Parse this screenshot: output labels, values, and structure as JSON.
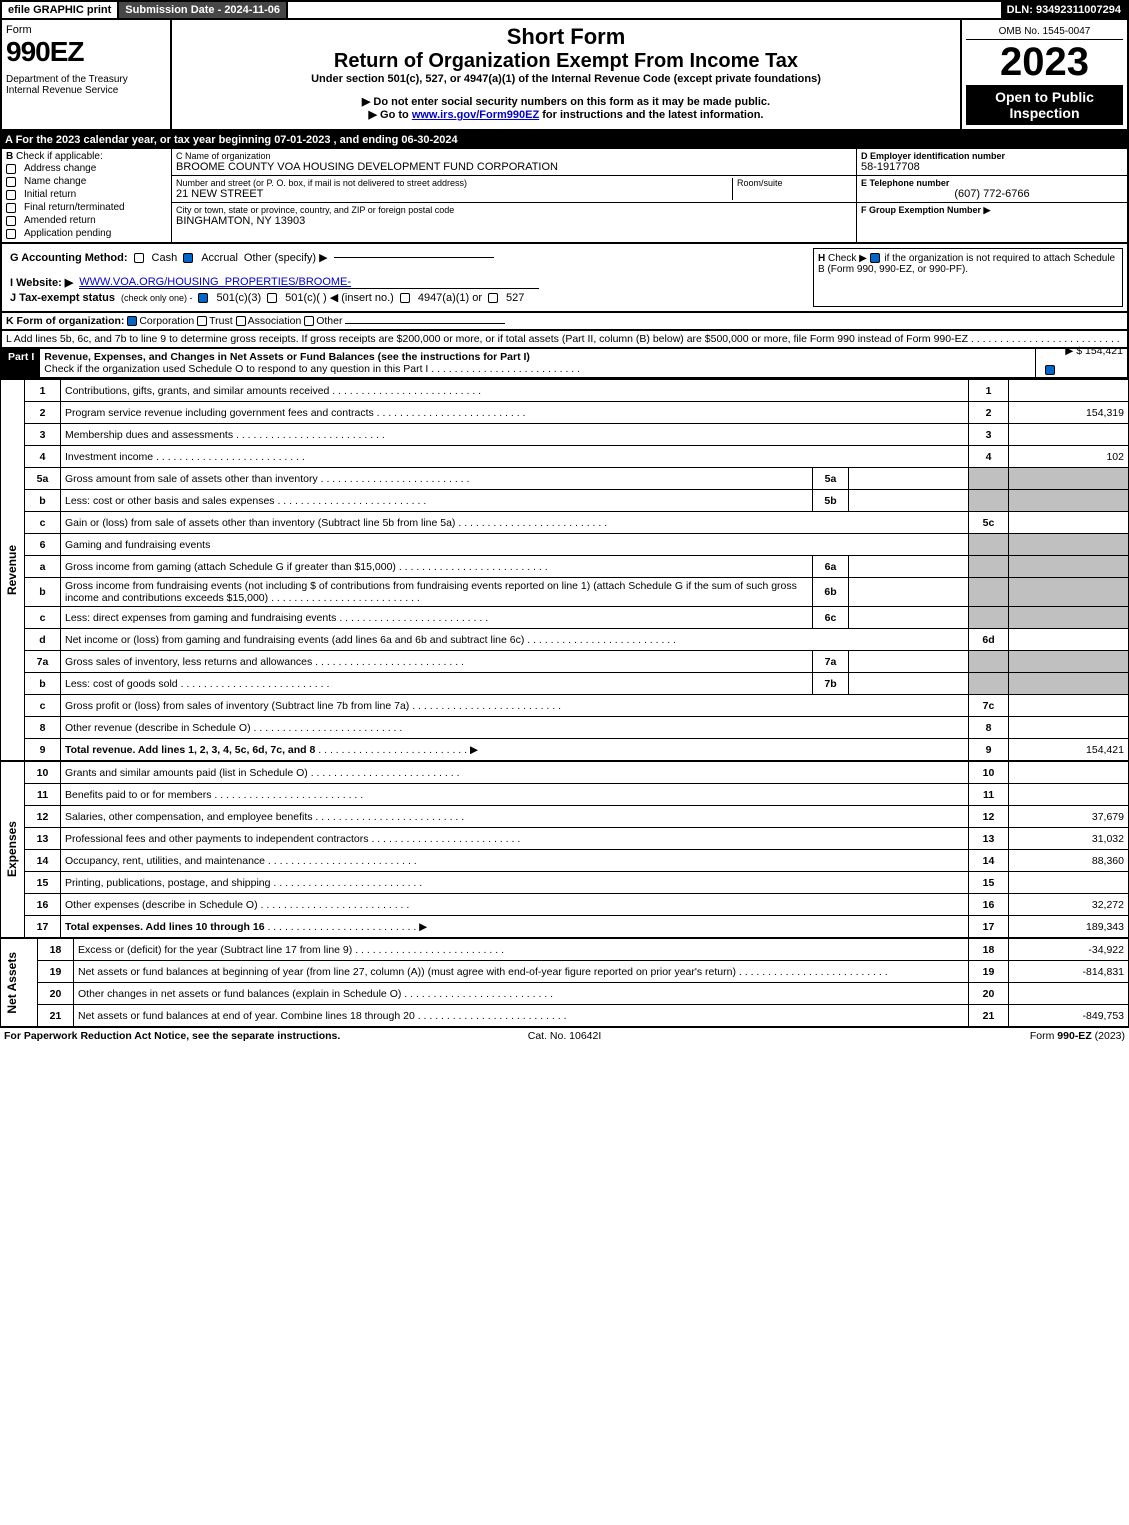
{
  "topbar": {
    "efile": "efile GRAPHIC print",
    "submission": "Submission Date - 2024-11-06",
    "dln": "DLN: 93492311007294"
  },
  "header": {
    "form_label": "Form",
    "form_number": "990EZ",
    "dept": "Department of the Treasury\nInternal Revenue Service",
    "short_form": "Short Form",
    "return_title": "Return of Organization Exempt From Income Tax",
    "subtitle": "Under section 501(c), 527, or 4947(a)(1) of the Internal Revenue Code (except private foundations)",
    "warn": "▶ Do not enter social security numbers on this form as it may be made public.",
    "goto": "▶ Go to ",
    "goto_link": "www.irs.gov/Form990EZ",
    "goto_suffix": " for instructions and the latest information.",
    "omb": "OMB No. 1545-0047",
    "year": "2023",
    "open": "Open to Public Inspection"
  },
  "section_a": "A For the 2023 calendar year, or tax year beginning 07-01-2023 , and ending 06-30-2024",
  "section_b": {
    "label": "B",
    "check_label": "Check if applicable:",
    "items": [
      "Address change",
      "Name change",
      "Initial return",
      "Final return/terminated",
      "Amended return",
      "Application pending"
    ]
  },
  "section_c": {
    "name_label": "C Name of organization",
    "name": "BROOME COUNTY VOA HOUSING DEVELOPMENT FUND CORPORATION",
    "street_label": "Number and street (or P. O. box, if mail is not delivered to street address)",
    "room_label": "Room/suite",
    "street": "21 NEW STREET",
    "city_label": "City or town, state or province, country, and ZIP or foreign postal code",
    "city": "BINGHAMTON, NY  13903"
  },
  "section_de": {
    "d_label": "D Employer identification number",
    "ein": "58-1917708",
    "e_label": "E Telephone number",
    "phone": "(607) 772-6766",
    "f_label": "F Group Exemption Number  ▶"
  },
  "section_g": {
    "label": "G Accounting Method:",
    "cash": "Cash",
    "accrual": "Accrual",
    "other": "Other (specify) ▶"
  },
  "section_h": {
    "label": "H",
    "text": "Check ▶",
    "suffix": "if the organization is not required to attach Schedule B (Form 990, 990-EZ, or 990-PF)."
  },
  "section_i": {
    "label": "I Website: ▶",
    "url": "WWW.VOA.ORG/HOUSING_PROPERTIES/BROOME-"
  },
  "section_j": {
    "label": "J Tax-exempt status",
    "suffix": "(check only one) -",
    "o1": "501(c)(3)",
    "o2": "501(c)(  ) ◀ (insert no.)",
    "o3": "4947(a)(1) or",
    "o4": "527"
  },
  "section_k": {
    "label": "K Form of organization:",
    "o1": "Corporation",
    "o2": "Trust",
    "o3": "Association",
    "o4": "Other"
  },
  "section_l": {
    "text": "L Add lines 5b, 6c, and 7b to line 9 to determine gross receipts. If gross receipts are $200,000 or more, or if total assets (Part II, column (B) below) are $500,000 or more, file Form 990 instead of Form 990-EZ",
    "value": "▶ $ 154,421"
  },
  "part1": {
    "label": "Part I",
    "title": "Revenue, Expenses, and Changes in Net Assets or Fund Balances (see the instructions for Part I)",
    "check": "Check if the organization used Schedule O to respond to any question in this Part I"
  },
  "side_labels": {
    "rev": "Revenue",
    "exp": "Expenses",
    "na": "Net Assets"
  },
  "rows": [
    {
      "n": "1",
      "desc": "Contributions, gifts, grants, and similar amounts received",
      "rn": "1",
      "rv": ""
    },
    {
      "n": "2",
      "desc": "Program service revenue including government fees and contracts",
      "rn": "2",
      "rv": "154,319"
    },
    {
      "n": "3",
      "desc": "Membership dues and assessments",
      "rn": "3",
      "rv": ""
    },
    {
      "n": "4",
      "desc": "Investment income",
      "rn": "4",
      "rv": "102"
    },
    {
      "n": "5a",
      "desc": "Gross amount from sale of assets other than inventory",
      "sn": "5a",
      "sv": "",
      "shaded": true
    },
    {
      "n": "b",
      "desc": "Less: cost or other basis and sales expenses",
      "sn": "5b",
      "sv": "",
      "shaded": true
    },
    {
      "n": "c",
      "desc": "Gain or (loss) from sale of assets other than inventory (Subtract line 5b from line 5a)",
      "rn": "5c",
      "rv": ""
    },
    {
      "n": "6",
      "desc": "Gaming and fundraising events",
      "shaded": true
    },
    {
      "n": "a",
      "desc": "Gross income from gaming (attach Schedule G if greater than $15,000)",
      "sn": "6a",
      "sv": "",
      "shaded": true
    },
    {
      "n": "b",
      "desc": "Gross income from fundraising events (not including $                    of contributions from fundraising events reported on line 1) (attach Schedule G if the sum of such gross income and contributions exceeds $15,000)",
      "sn": "6b",
      "sv": "",
      "shaded": true
    },
    {
      "n": "c",
      "desc": "Less: direct expenses from gaming and fundraising events",
      "sn": "6c",
      "sv": "",
      "shaded": true
    },
    {
      "n": "d",
      "desc": "Net income or (loss) from gaming and fundraising events (add lines 6a and 6b and subtract line 6c)",
      "rn": "6d",
      "rv": ""
    },
    {
      "n": "7a",
      "desc": "Gross sales of inventory, less returns and allowances",
      "sn": "7a",
      "sv": "",
      "shaded": true
    },
    {
      "n": "b",
      "desc": "Less: cost of goods sold",
      "sn": "7b",
      "sv": "",
      "shaded": true
    },
    {
      "n": "c",
      "desc": "Gross profit or (loss) from sales of inventory (Subtract line 7b from line 7a)",
      "rn": "7c",
      "rv": ""
    },
    {
      "n": "8",
      "desc": "Other revenue (describe in Schedule O)",
      "rn": "8",
      "rv": ""
    },
    {
      "n": "9",
      "desc": "Total revenue. Add lines 1, 2, 3, 4, 5c, 6d, 7c, and 8",
      "rn": "9",
      "rv": "154,421",
      "bold": true,
      "arrow": true
    }
  ],
  "exp_rows": [
    {
      "n": "10",
      "desc": "Grants and similar amounts paid (list in Schedule O)",
      "rn": "10",
      "rv": ""
    },
    {
      "n": "11",
      "desc": "Benefits paid to or for members",
      "rn": "11",
      "rv": ""
    },
    {
      "n": "12",
      "desc": "Salaries, other compensation, and employee benefits",
      "rn": "12",
      "rv": "37,679"
    },
    {
      "n": "13",
      "desc": "Professional fees and other payments to independent contractors",
      "rn": "13",
      "rv": "31,032"
    },
    {
      "n": "14",
      "desc": "Occupancy, rent, utilities, and maintenance",
      "rn": "14",
      "rv": "88,360"
    },
    {
      "n": "15",
      "desc": "Printing, publications, postage, and shipping",
      "rn": "15",
      "rv": ""
    },
    {
      "n": "16",
      "desc": "Other expenses (describe in Schedule O)",
      "rn": "16",
      "rv": "32,272"
    },
    {
      "n": "17",
      "desc": "Total expenses. Add lines 10 through 16",
      "rn": "17",
      "rv": "189,343",
      "bold": true,
      "arrow": true
    }
  ],
  "na_rows": [
    {
      "n": "18",
      "desc": "Excess or (deficit) for the year (Subtract line 17 from line 9)",
      "rn": "18",
      "rv": "-34,922"
    },
    {
      "n": "19",
      "desc": "Net assets or fund balances at beginning of year (from line 27, column (A)) (must agree with end-of-year figure reported on prior year's return)",
      "rn": "19",
      "rv": "-814,831"
    },
    {
      "n": "20",
      "desc": "Other changes in net assets or fund balances (explain in Schedule O)",
      "rn": "20",
      "rv": ""
    },
    {
      "n": "21",
      "desc": "Net assets or fund balances at end of year. Combine lines 18 through 20",
      "rn": "21",
      "rv": "-849,753"
    }
  ],
  "footer": {
    "left": "For Paperwork Reduction Act Notice, see the separate instructions.",
    "center": "Cat. No. 10642I",
    "right": "Form 990-EZ (2023)"
  }
}
